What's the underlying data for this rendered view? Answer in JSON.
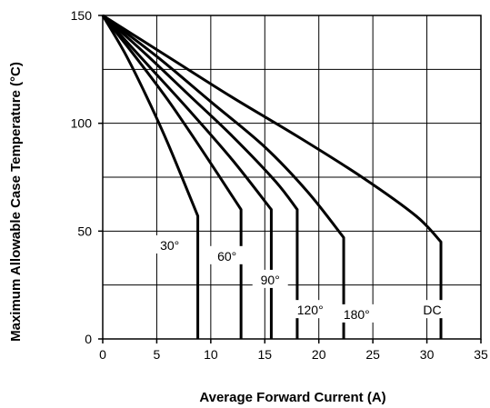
{
  "chart_data": {
    "type": "line",
    "title": "",
    "xlabel": "Average Forward Current (A)",
    "ylabel": "Maximum Allowable Case Temperature (°C)",
    "xlim": [
      0,
      35
    ],
    "ylim": [
      0,
      150
    ],
    "x_ticks": [
      "0",
      "5",
      "10",
      "15",
      "20",
      "25",
      "30",
      "35"
    ],
    "y_ticks": [
      "0",
      "50",
      "100",
      "150"
    ],
    "grid": true,
    "series": [
      {
        "name": "30°",
        "x": [
          0,
          2,
          4,
          6,
          8.8,
          8.8
        ],
        "y": [
          150,
          133,
          113,
          91,
          57,
          0
        ],
        "label_at": [
          6.2,
          43
        ]
      },
      {
        "name": "60°",
        "x": [
          0,
          3,
          6,
          9,
          12.8,
          12.8
        ],
        "y": [
          150,
          131,
          111,
          89,
          60,
          0
        ],
        "label_at": [
          11.5,
          38
        ]
      },
      {
        "name": "90°",
        "x": [
          0,
          4,
          8,
          12,
          15.6,
          15.6
        ],
        "y": [
          150,
          128,
          106,
          83,
          60,
          0
        ],
        "label_at": [
          15.5,
          27
        ]
      },
      {
        "name": "120°",
        "x": [
          0,
          4,
          8,
          12,
          16,
          18,
          18
        ],
        "y": [
          150,
          132,
          113,
          94,
          73,
          60,
          0
        ],
        "label_at": [
          19.2,
          13
        ]
      },
      {
        "name": "180°",
        "x": [
          0,
          5,
          10,
          15,
          19,
          22.3,
          22.3
        ],
        "y": [
          150,
          131,
          110,
          89,
          68,
          47,
          0
        ],
        "label_at": [
          23.5,
          11
        ]
      },
      {
        "name": "DC",
        "x": [
          0,
          6,
          12,
          18,
          24,
          29,
          31.3,
          31.3
        ],
        "y": [
          150,
          131,
          112,
          94,
          75,
          57,
          45,
          0
        ],
        "label_at": [
          30.5,
          13
        ]
      }
    ]
  }
}
